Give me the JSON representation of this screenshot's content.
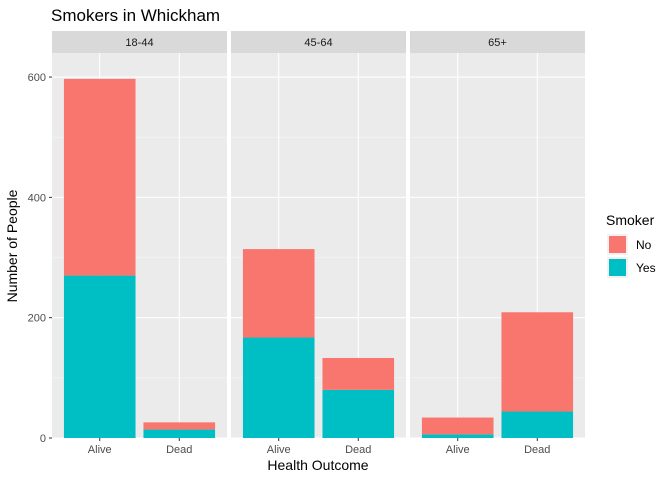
{
  "chart_data": {
    "type": "bar",
    "stacked": true,
    "faceted": true,
    "title": "Smokers in Whickham",
    "xlabel": "Health Outcome",
    "ylabel": "Number of People",
    "ylim": [
      0,
      640
    ],
    "yticks": [
      0,
      200,
      400,
      600
    ],
    "categories": [
      "Alive",
      "Dead"
    ],
    "facets": [
      "18-44",
      "45-64",
      "65+"
    ],
    "legend": {
      "title": "Smoker",
      "placement": "right"
    },
    "series": [
      {
        "name": "No",
        "color": "#F8766D",
        "values": [
          [
            327,
            12
          ],
          [
            147,
            53
          ],
          [
            28,
            165
          ]
        ]
      },
      {
        "name": "Yes",
        "color": "#00BFC4",
        "values": [
          [
            270,
            14
          ],
          [
            167,
            80
          ],
          [
            6,
            44
          ]
        ]
      }
    ],
    "stack_order": [
      "Yes",
      "No"
    ],
    "grid": true
  }
}
